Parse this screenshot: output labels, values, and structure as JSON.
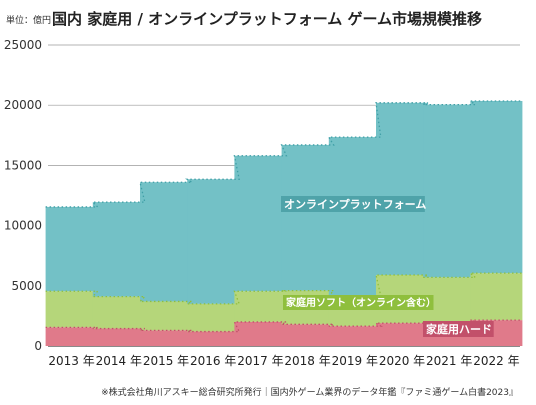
{
  "header": {
    "unit": "単位：億円",
    "title": "国内 家庭用 / オンラインプラットフォーム ゲーム市場規模推移"
  },
  "footer": {
    "source": "※株式会社角川アスキー総合研究所発行｜国内外ゲーム業界のデータ年鑑『ファミ通ゲーム白書2023』"
  },
  "chart_data": {
    "type": "bar",
    "stacked": true,
    "categories": [
      "2013 年",
      "2014 年",
      "2015 年",
      "2016 年",
      "2017 年",
      "2018 年",
      "2019 年",
      "2020 年",
      "2021 年",
      "2022 年"
    ],
    "ylim": [
      0,
      25000
    ],
    "yticks": [
      0,
      5000,
      10000,
      15000,
      20000,
      25000
    ],
    "grid": true,
    "dotted_trend_lines": true,
    "series": [
      {
        "name": "家庭用ハード",
        "color": "#e07a8a",
        "values": [
          1550,
          1450,
          1300,
          1200,
          2000,
          1800,
          1650,
          1900,
          2000,
          2150
        ]
      },
      {
        "name": "家庭用ソフト（オンライン含む）",
        "color": "#b5d67a",
        "values": [
          3000,
          2650,
          2400,
          2300,
          2550,
          2800,
          2500,
          4000,
          3700,
          3900
        ]
      },
      {
        "name": "オンラインプラットフォーム",
        "color": "#73c1c6",
        "values": [
          7000,
          7850,
          9900,
          10350,
          11250,
          12100,
          13200,
          14300,
          14350,
          14300
        ]
      }
    ]
  }
}
